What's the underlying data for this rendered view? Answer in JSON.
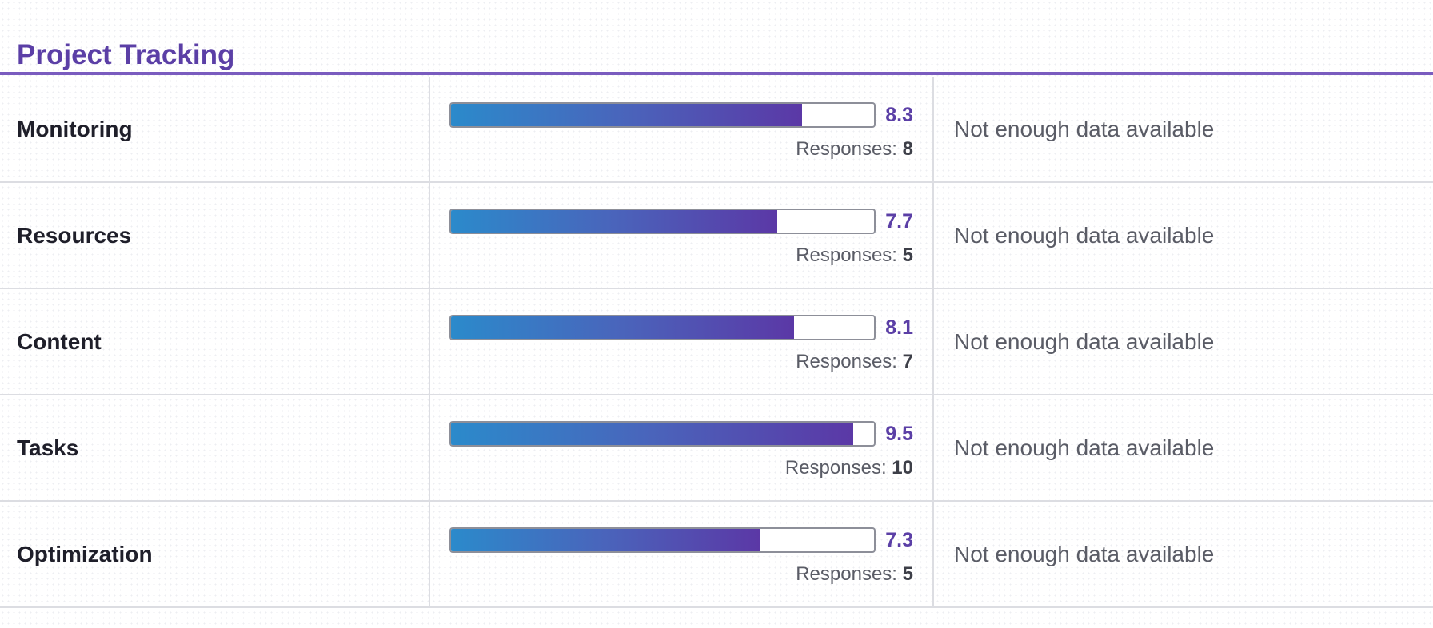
{
  "section": {
    "title": "Project Tracking"
  },
  "scale_max": 10,
  "rows": [
    {
      "label": "Monitoring",
      "score": "8.3",
      "responses_label": "Responses:",
      "responses": "8",
      "status": "Not enough data available"
    },
    {
      "label": "Resources",
      "score": "7.7",
      "responses_label": "Responses:",
      "responses": "5",
      "status": "Not enough data available"
    },
    {
      "label": "Content",
      "score": "8.1",
      "responses_label": "Responses:",
      "responses": "7",
      "status": "Not enough data available"
    },
    {
      "label": "Tasks",
      "score": "9.5",
      "responses_label": "Responses:",
      "responses": "10",
      "status": "Not enough data available"
    },
    {
      "label": "Optimization",
      "score": "7.3",
      "responses_label": "Responses:",
      "responses": "5",
      "status": "Not enough data available"
    }
  ],
  "colors": {
    "accent": "#5b3fa6",
    "bar_start": "#2b8acb",
    "bar_end": "#5b38a6"
  }
}
